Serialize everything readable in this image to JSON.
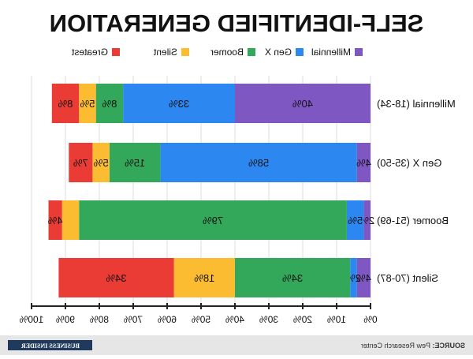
{
  "chart_data": {
    "type": "bar",
    "stacked": true,
    "orientation": "horizontal",
    "title": "SELF-IDENTIFIED GENERATION",
    "categories": [
      "Millennial (18-34)",
      "Gen X (35-50)",
      "Boomer (51-69)",
      "Silent (70-87)"
    ],
    "series": [
      {
        "name": "Millennial",
        "color": "#7e57c2",
        "values": [
          40,
          4,
          2,
          4
        ],
        "labels": [
          "40%",
          "4%",
          "2%",
          "4%"
        ]
      },
      {
        "name": "Gen X",
        "color": "#2d87f0",
        "values": [
          33,
          58,
          5,
          2
        ],
        "labels": [
          "33%",
          "58%",
          "5%",
          "2%"
        ]
      },
      {
        "name": "Boomer",
        "color": "#33a85a",
        "values": [
          8,
          15,
          79,
          34
        ],
        "labels": [
          "8%",
          "15%",
          "79%",
          "34%"
        ]
      },
      {
        "name": "Silent",
        "color": "#fbbc31",
        "values": [
          5,
          5,
          5,
          18
        ],
        "labels": [
          "5%",
          "5%",
          "",
          "18%"
        ]
      },
      {
        "name": "Greatest",
        "color": "#ea3b35",
        "values": [
          8,
          7,
          4,
          34
        ],
        "labels": [
          "8%",
          "7%",
          "4%",
          "34%"
        ]
      }
    ],
    "xlim": [
      0,
      100
    ],
    "ticks": [
      "0%",
      "10%",
      "20%",
      "30%",
      "40%",
      "50%",
      "60%",
      "70%",
      "80%",
      "90%",
      "100%"
    ],
    "grid": true,
    "legend_position": "top"
  },
  "footer": {
    "source_label": "SOURCE:",
    "source_text": " Pew Research Center",
    "logo_text": "BUSINESS INSIDER"
  },
  "colors": {
    "title": "#111111",
    "grid": "#dddddd",
    "axis": "#222222",
    "logo_bg": "#1f3a5c",
    "logo_text": "#ffffff"
  }
}
